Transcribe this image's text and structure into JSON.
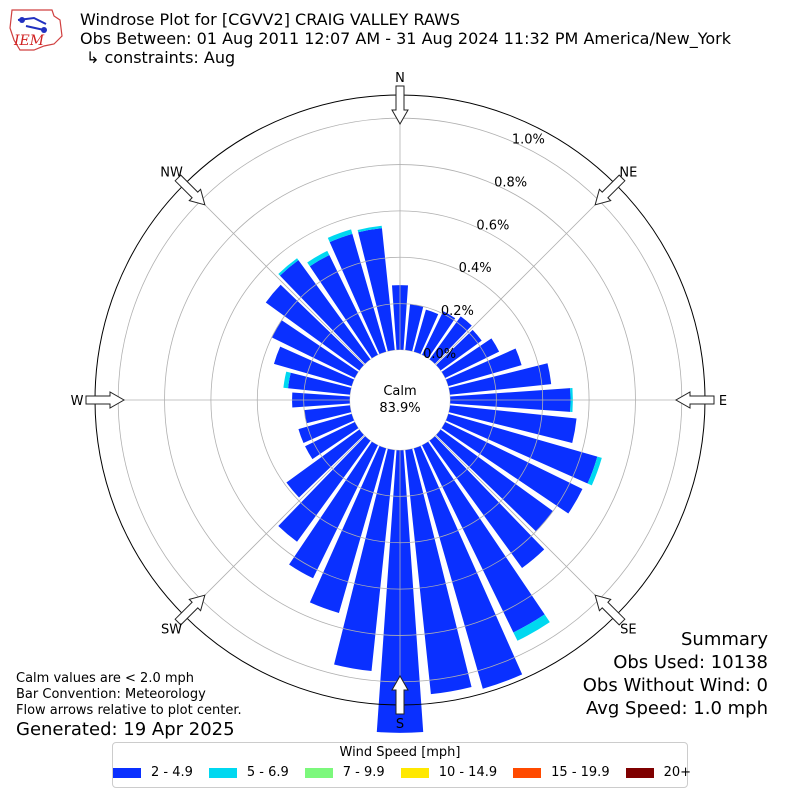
{
  "header": {
    "title": "Windrose Plot for [CGVV2] CRAIG VALLEY RAWS",
    "period": "Obs Between: 01 Aug 2011 12:07 AM - 31 Aug 2024 11:32 PM America/New_York",
    "constraints": "↳ constraints: Aug"
  },
  "logo": {
    "text": "IEM"
  },
  "notes": {
    "line1": "Calm values are < 2.0 mph",
    "line2": "Bar Convention: Meteorology",
    "line3": "Flow arrows relative to plot center.",
    "generated": "Generated: 19 Apr 2025"
  },
  "summary": {
    "title": "Summary",
    "obs_used": "Obs Used: 10138",
    "obs_without_wind": "Obs Without Wind: 0",
    "avg_speed": "Avg Speed: 1.0 mph"
  },
  "legend": {
    "title": "Wind Speed [mph]",
    "items": [
      {
        "label": "2 - 4.9",
        "color": "#0a30ff"
      },
      {
        "label": "5 - 6.9",
        "color": "#00d8f0"
      },
      {
        "label": "7 - 9.9",
        "color": "#7cf87c"
      },
      {
        "label": "10 - 14.9",
        "color": "#ffe800"
      },
      {
        "label": "15 - 19.9",
        "color": "#ff4a00"
      },
      {
        "label": "20+",
        "color": "#7f0000"
      }
    ]
  },
  "chart_data": {
    "type": "windrose",
    "calm": {
      "label": "Calm",
      "value": "83.9%"
    },
    "compass_labels": [
      "N",
      "NE",
      "E",
      "SE",
      "S",
      "SW",
      "W",
      "NW"
    ],
    "radial_ticks": [
      "0.0%",
      "0.2%",
      "0.4%",
      "0.6%",
      "0.8%",
      "1.0%"
    ],
    "radial_max": 1.1,
    "grid": true,
    "bar_convention": "Meteorology",
    "direction_bin_deg": 10,
    "series": [
      {
        "name": "2 - 4.9",
        "color": "#0a30ff",
        "values": [
          0.28,
          0.2,
          0.19,
          0.21,
          0.23,
          0.22,
          0.26,
          0.33,
          0.44,
          0.52,
          0.55,
          0.67,
          0.66,
          0.6,
          0.68,
          0.9,
          1.08,
          1.06,
          1.22,
          0.96,
          0.74,
          0.64,
          0.54,
          0.39,
          0.24,
          0.24,
          0.2,
          0.25,
          0.27,
          0.35,
          0.4,
          0.5,
          0.53,
          0.48,
          0.53,
          0.53
        ]
      },
      {
        "name": "5 - 6.9",
        "color": "#00d8f0",
        "values": [
          0,
          0,
          0,
          0,
          0,
          0,
          0,
          0,
          0,
          0.01,
          0,
          0.02,
          0,
          0,
          0,
          0.04,
          0,
          0,
          0,
          0,
          0,
          0,
          0,
          0,
          0,
          0,
          0,
          0,
          0.02,
          0,
          0,
          0,
          0.01,
          0.02,
          0.02,
          0.01
        ]
      },
      {
        "name": "7 - 9.9",
        "color": "#7cf87c",
        "values": []
      },
      {
        "name": "10 - 14.9",
        "color": "#ffe800",
        "values": []
      },
      {
        "name": "15 - 19.9",
        "color": "#ff4a00",
        "values": []
      },
      {
        "name": "20+",
        "color": "#7f0000",
        "values": []
      }
    ]
  }
}
